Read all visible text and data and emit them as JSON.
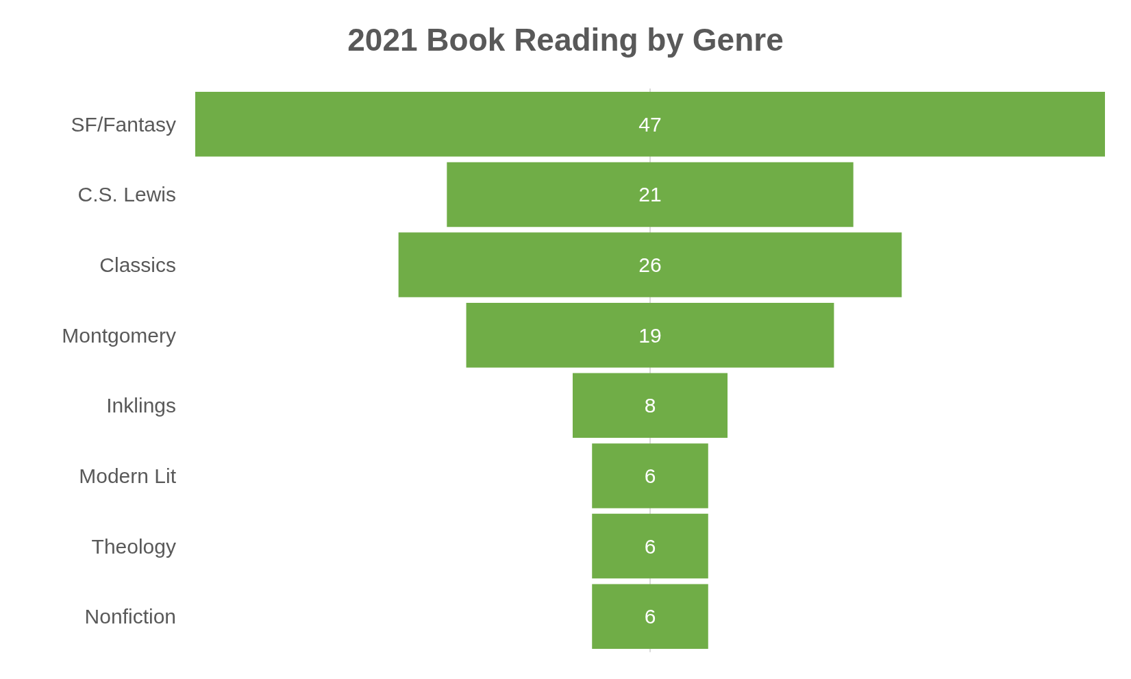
{
  "chart_data": {
    "type": "other",
    "title": "2021 Book Reading by Genre",
    "categories": [
      "SF/Fantasy",
      "C.S. Lewis",
      "Classics",
      "Montgomery",
      "Inklings",
      "Modern Lit",
      "Theology",
      "Nonfiction"
    ],
    "values": [
      47,
      21,
      26,
      19,
      8,
      6,
      6,
      6
    ],
    "color": "#70ad47",
    "data_labels": true
  }
}
